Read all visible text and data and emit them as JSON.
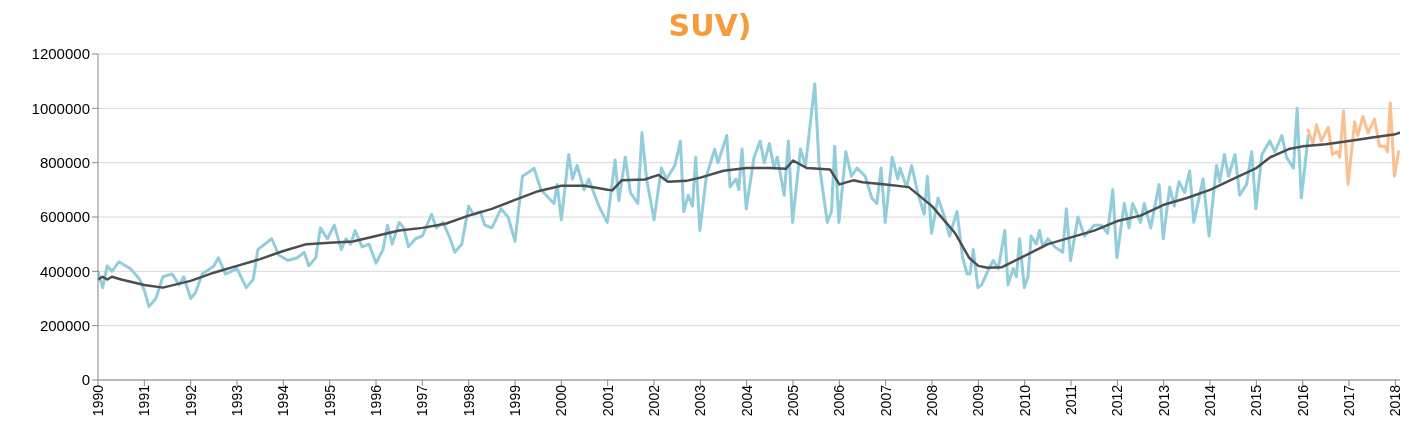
{
  "chart_data": {
    "type": "line",
    "title": "SUV)",
    "xlim": [
      1990,
      2018.1
    ],
    "xticks": [
      1990,
      1991,
      1992,
      1993,
      1994,
      1995,
      1996,
      1997,
      1998,
      1999,
      2000,
      2001,
      2002,
      2003,
      2004,
      2005,
      2006,
      2007,
      2008,
      2009,
      2010,
      2011,
      2012,
      2013,
      2014,
      2015,
      2016,
      2017,
      2018
    ],
    "ylim": [
      0,
      1200000
    ],
    "yticks": [
      0,
      200000,
      400000,
      600000,
      800000,
      1000000,
      1200000
    ],
    "grid": "y",
    "legend": false,
    "marker": "none",
    "line_style": "solid",
    "series": [
      {
        "color": "#92cddc",
        "x": [
          1990,
          1990.1,
          1990.2,
          1990.3,
          1990.45,
          1990.7,
          1990.9,
          1991,
          1991.1,
          1991.25,
          1991.4,
          1991.6,
          1991.75,
          1991.85,
          1992,
          1992.1,
          1992.25,
          1992.5,
          1992.6,
          1992.75,
          1993,
          1993.2,
          1993.35,
          1993.45,
          1993.6,
          1993.75,
          1993.9,
          1994.1,
          1994.3,
          1994.45,
          1994.55,
          1994.7,
          1994.8,
          1994.95,
          1995.1,
          1995.25,
          1995.35,
          1995.45,
          1995.55,
          1995.7,
          1995.85,
          1996,
          1996.15,
          1996.25,
          1996.35,
          1996.5,
          1996.6,
          1996.7,
          1996.85,
          1997,
          1997.2,
          1997.3,
          1997.45,
          1997.6,
          1997.7,
          1997.85,
          1998,
          1998.1,
          1998.25,
          1998.35,
          1998.5,
          1998.7,
          1998.85,
          1999,
          1999.16,
          1999.34,
          1999.41,
          1999.56,
          1999.84,
          1999.91,
          2000,
          2000.16,
          2000.24,
          2000.34,
          2000.49,
          2000.59,
          2000.81,
          2000.99,
          2001.16,
          2001.24,
          2001.38,
          2001.49,
          2001.65,
          2001.74,
          2001.84,
          2002,
          2002.16,
          2002.27,
          2002.45,
          2002.57,
          2002.64,
          2002.74,
          2002.83,
          2002.9,
          2002.99,
          2003.13,
          2003.31,
          2003.38,
          2003.57,
          2003.64,
          2003.77,
          2003.83,
          2003.9,
          2003.99,
          2004.16,
          2004.29,
          2004.38,
          2004.49,
          2004.59,
          2004.66,
          2004.81,
          2004.9,
          2004.99,
          2005.16,
          2005.27,
          2005.47,
          2005.56,
          2005.74,
          2005.83,
          2005.9,
          2005.99,
          2006.14,
          2006.26,
          2006.38,
          2006.56,
          2006.7,
          2006.81,
          2006.9,
          2006.99,
          2007.14,
          2007.26,
          2007.31,
          2007.45,
          2007.56,
          2007.69,
          2007.83,
          2007.9,
          2007.99,
          2008.13,
          2008.27,
          2008.38,
          2008.54,
          2008.66,
          2008.76,
          2008.82,
          2008.89,
          2008.99,
          2009.07,
          2009.2,
          2009.32,
          2009.43,
          2009.57,
          2009.64,
          2009.75,
          2009.82,
          2009.89,
          2009.99,
          2010.07,
          2010.14,
          2010.25,
          2010.32,
          2010.39,
          2010.5,
          2010.65,
          2010.82,
          2010.9,
          2010.99,
          2011.15,
          2011.29,
          2011.5,
          2011.65,
          2011.79,
          2011.9,
          2011.99,
          2012.15,
          2012.25,
          2012.33,
          2012.5,
          2012.58,
          2012.72,
          2012.9,
          2012.99,
          2013.13,
          2013.23,
          2013.33,
          2013.45,
          2013.56,
          2013.65,
          2013.85,
          2013.98,
          2014.14,
          2014.21,
          2014.31,
          2014.4,
          2014.54,
          2014.64,
          2014.79,
          2014.9,
          2014.99,
          2015.12,
          2015.29,
          2015.4,
          2015.55,
          2015.65,
          2015.8,
          2015.88,
          2015.97,
          2016.12
        ],
        "values": [
          400000,
          340000,
          420000,
          400000,
          435000,
          410000,
          370000,
          330000,
          270000,
          300000,
          380000,
          390000,
          350000,
          380000,
          300000,
          320000,
          390000,
          420000,
          450000,
          390000,
          410000,
          340000,
          370000,
          480000,
          500000,
          520000,
          460000,
          440000,
          450000,
          470000,
          420000,
          450000,
          560000,
          520000,
          570000,
          480000,
          520000,
          500000,
          550000,
          490000,
          500000,
          430000,
          480000,
          570000,
          500000,
          580000,
          560000,
          490000,
          520000,
          530000,
          610000,
          560000,
          580000,
          520000,
          470000,
          500000,
          640000,
          610000,
          620000,
          570000,
          560000,
          630000,
          600000,
          510000,
          750000,
          770000,
          780000,
          700000,
          650000,
          720000,
          590000,
          830000,
          740000,
          790000,
          700000,
          740000,
          640000,
          580000,
          810000,
          660000,
          820000,
          690000,
          650000,
          910000,
          740000,
          590000,
          780000,
          740000,
          790000,
          880000,
          620000,
          680000,
          640000,
          820000,
          550000,
          750000,
          850000,
          800000,
          900000,
          710000,
          740000,
          700000,
          850000,
          630000,
          820000,
          880000,
          800000,
          870000,
          780000,
          820000,
          680000,
          880000,
          580000,
          850000,
          790000,
          1090000,
          800000,
          580000,
          620000,
          860000,
          580000,
          840000,
          750000,
          780000,
          750000,
          670000,
          650000,
          780000,
          580000,
          820000,
          740000,
          780000,
          710000,
          790000,
          690000,
          610000,
          750000,
          540000,
          670000,
          600000,
          530000,
          620000,
          450000,
          390000,
          390000,
          480000,
          340000,
          350000,
          400000,
          440000,
          410000,
          550000,
          350000,
          410000,
          380000,
          520000,
          340000,
          380000,
          530000,
          500000,
          550000,
          490000,
          520000,
          490000,
          470000,
          630000,
          440000,
          600000,
          530000,
          570000,
          570000,
          540000,
          700000,
          450000,
          650000,
          560000,
          650000,
          580000,
          650000,
          560000,
          720000,
          520000,
          710000,
          640000,
          730000,
          690000,
          770000,
          580000,
          740000,
          530000,
          790000,
          730000,
          830000,
          750000,
          830000,
          680000,
          720000,
          840000,
          630000,
          830000,
          880000,
          840000,
          900000,
          820000,
          780000,
          1000000,
          670000,
          900000
        ]
      },
      {
        "color": "#fac090",
        "x": [
          2016.12,
          2016.22,
          2016.3,
          2016.4,
          2016.55,
          2016.64,
          2016.74,
          2016.8,
          2016.88,
          2016.98,
          2017.12,
          2017.19,
          2017.3,
          2017.41,
          2017.55,
          2017.66,
          2017.78,
          2017.83,
          2017.89,
          2017.98,
          2018.07
        ],
        "values": [
          920000,
          870000,
          940000,
          880000,
          930000,
          830000,
          840000,
          820000,
          990000,
          720000,
          950000,
          900000,
          970000,
          910000,
          960000,
          860000,
          860000,
          840000,
          1020000,
          750000,
          840000
        ]
      },
      {
        "color": "#4d4d4d",
        "x": [
          1990,
          1990.1,
          1990.2,
          1990.3,
          1990.5,
          1991,
          1991.4,
          1992,
          1992.5,
          1993,
          1993.5,
          1994,
          1994.5,
          1995,
          1995.5,
          1996,
          1996.5,
          1997,
          1997.5,
          1998,
          1998.5,
          1999,
          1999.5,
          2000,
          2000.5,
          2001,
          2001.1,
          2001.3,
          2001.8,
          2002.1,
          2002.3,
          2002.7,
          2003,
          2003.5,
          2004,
          2004.5,
          2004.85,
          2005,
          2005.3,
          2005.8,
          2006,
          2006.3,
          2006.5,
          2007,
          2007.5,
          2008,
          2008.5,
          2008.8,
          2009,
          2009.2,
          2009.5,
          2010,
          2010.5,
          2011,
          2011.5,
          2012,
          2012.5,
          2013,
          2013.5,
          2014,
          2014.5,
          2015,
          2015.3,
          2015.7,
          2016,
          2016.5,
          2017,
          2017.5,
          2018,
          2018.1
        ],
        "values": [
          370000,
          380000,
          370000,
          380000,
          370000,
          350000,
          340000,
          365000,
          395000,
          420000,
          445000,
          475000,
          500000,
          505000,
          510000,
          530000,
          550000,
          560000,
          575000,
          605000,
          630000,
          663000,
          695000,
          715000,
          715000,
          700000,
          698000,
          735000,
          738000,
          755000,
          730000,
          733000,
          745000,
          770000,
          780000,
          780000,
          778000,
          808000,
          780000,
          775000,
          720000,
          735000,
          728000,
          720000,
          710000,
          640000,
          540000,
          450000,
          420000,
          413000,
          415000,
          457000,
          500000,
          525000,
          550000,
          585000,
          605000,
          645000,
          670000,
          700000,
          740000,
          780000,
          820000,
          850000,
          860000,
          868000,
          880000,
          893000,
          905000,
          910000
        ]
      }
    ]
  }
}
